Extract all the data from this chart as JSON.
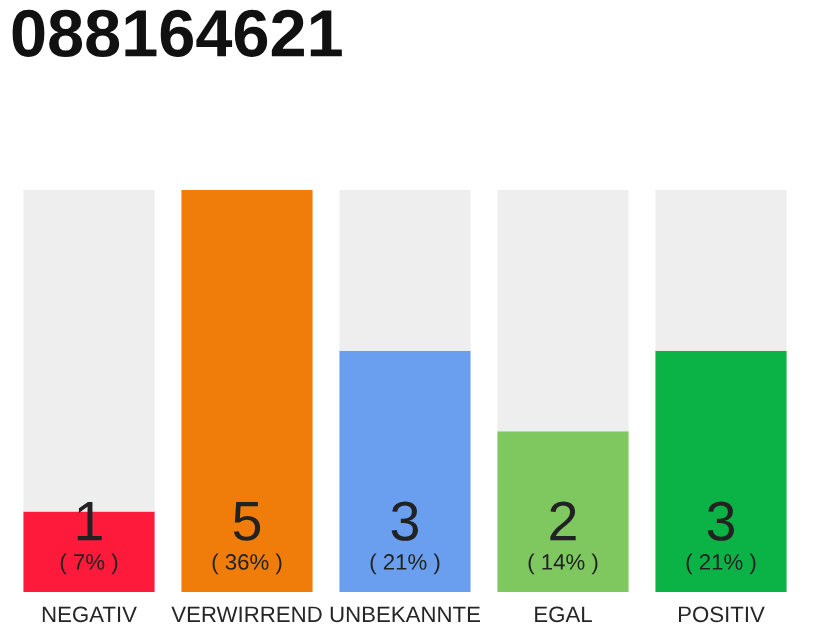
{
  "chart_data": {
    "type": "bar",
    "title": "088164621",
    "categories": [
      "NEGATIV",
      "VERWIRREND",
      "UNBEKANNTE",
      "EGAL",
      "POSITIV"
    ],
    "stacked": true,
    "ylim": [
      0,
      5
    ],
    "tick_labels": "x",
    "grid": false,
    "legend": false,
    "series": [
      {
        "colors": [
          "#fe1a3b",
          "#f07d0a",
          "#6a9fef",
          "#7ec85f",
          "#0bb346"
        ],
        "values": [
          1,
          5,
          3,
          2,
          3
        ],
        "value_labels": [
          "1\n( 7% )",
          "5\n( 36% )",
          "3\n( 21% )",
          "2\n( 14% )",
          "3\n( 21% )"
        ]
      },
      {
        "color": "#eeeeee",
        "values": [
          4,
          0,
          2,
          3,
          2
        ]
      }
    ]
  }
}
